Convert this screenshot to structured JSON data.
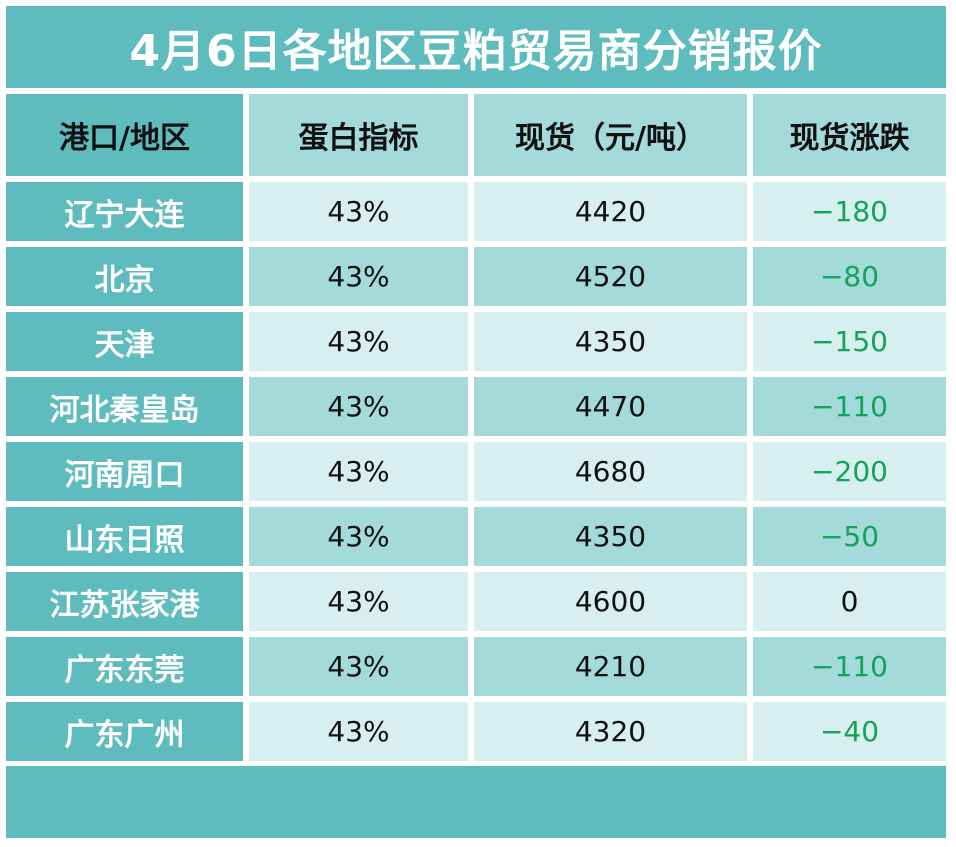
{
  "title": "4月6日各地区豆粕贸易商分销报价",
  "headers": [
    "港口/地区",
    "蛋白指标",
    "现货（元/吨）",
    "现货涨跌"
  ],
  "rows": [
    {
      "region": "辽宁大连",
      "protein": "43%",
      "spot": "4420",
      "change": "−180"
    },
    {
      "region": "北京",
      "protein": "43%",
      "spot": "4520",
      "change": "−80"
    },
    {
      "region": "天津",
      "protein": "43%",
      "spot": "4350",
      "change": "−150"
    },
    {
      "region": "河北秦皇岛",
      "protein": "43%",
      "spot": "4470",
      "change": "−110"
    },
    {
      "region": "河南周口",
      "protein": "43%",
      "spot": "4680",
      "change": "−200"
    },
    {
      "region": "山东日照",
      "protein": "43%",
      "spot": "4350",
      "change": "−50"
    },
    {
      "region": "江苏张家港",
      "protein": "43%",
      "spot": "4600",
      "change": "0"
    },
    {
      "region": "广东东莞",
      "protein": "43%",
      "spot": "4210",
      "change": "−110"
    },
    {
      "region": "广东广州",
      "protein": "43%",
      "spot": "4320",
      "change": "−40"
    }
  ],
  "colors": {
    "teal": "#5fbcbe",
    "light_teal": "#a4dad9",
    "pale_teal": "#d7efef",
    "negative_change": "#13a35a"
  }
}
